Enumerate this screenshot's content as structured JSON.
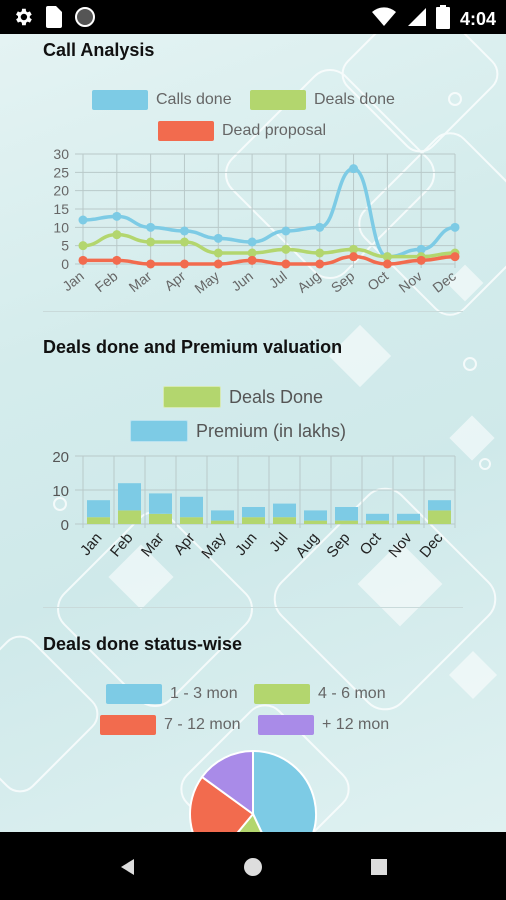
{
  "status_bar": {
    "time": "4:04",
    "left_icons": [
      "gear-icon",
      "sim-card-icon",
      "circle-icon"
    ],
    "right_icons": [
      "wifi-icon",
      "signal-icon",
      "battery-icon"
    ]
  },
  "sections": {
    "call_analysis": {
      "title": "Call Analysis"
    },
    "deals_premium": {
      "title": "Deals done and Premium valuation"
    },
    "status_wise": {
      "title": "Deals done status-wise"
    }
  },
  "colors": {
    "blue": "#7dcbe5",
    "green": "#b3d66e",
    "red": "#f26b4e",
    "purple": "#a98be8"
  },
  "chart_data": [
    {
      "type": "line",
      "title": "Call Analysis",
      "categories": [
        "Jan",
        "Feb",
        "Mar",
        "Apr",
        "May",
        "Jun",
        "Jul",
        "Aug",
        "Sep",
        "Oct",
        "Nov",
        "Dec"
      ],
      "ylim": [
        0,
        30
      ],
      "yticks": [
        0,
        5,
        10,
        15,
        20,
        25,
        30
      ],
      "series": [
        {
          "name": "Calls done",
          "color": "#7dcbe5",
          "values": [
            12,
            13,
            10,
            9,
            7,
            6,
            9,
            10,
            26,
            2,
            4,
            10
          ]
        },
        {
          "name": "Deals done",
          "color": "#b3d66e",
          "values": [
            5,
            8,
            6,
            6,
            3,
            3,
            4,
            3,
            4,
            2,
            2,
            3
          ]
        },
        {
          "name": "Dead proposal",
          "color": "#f26b4e",
          "values": [
            1,
            1,
            0,
            0,
            0,
            1,
            0,
            0,
            2,
            0,
            1,
            2
          ]
        }
      ],
      "legend_position": "top"
    },
    {
      "type": "bar",
      "title": "Deals done and Premium valuation",
      "categories": [
        "Jan",
        "Feb",
        "Mar",
        "Apr",
        "May",
        "Jun",
        "Jul",
        "Aug",
        "Sep",
        "Oct",
        "Nov",
        "Dec"
      ],
      "ylim": [
        0,
        20
      ],
      "yticks": [
        0,
        10,
        20
      ],
      "stacked": true,
      "series": [
        {
          "name": "Deals Done",
          "color": "#b3d66e",
          "values": [
            2,
            4,
            3,
            2,
            1,
            2,
            2,
            1,
            1,
            1,
            1,
            4
          ]
        },
        {
          "name": "Premium (in lakhs)",
          "color": "#7dcbe5",
          "values": [
            5,
            8,
            6,
            6,
            3,
            3,
            4,
            3,
            4,
            2,
            2,
            3
          ]
        }
      ],
      "legend_position": "top"
    },
    {
      "type": "pie",
      "title": "Deals done status-wise",
      "slices": [
        {
          "label": "1 - 3 mon",
          "color": "#7dcbe5",
          "value": 43
        },
        {
          "label": "4 - 6 mon",
          "color": "#b3d66e",
          "value": 18
        },
        {
          "label": "7 - 12 mon",
          "color": "#f26b4e",
          "value": 24
        },
        {
          "label": "+ 12 mon",
          "color": "#a98be8",
          "value": 15
        }
      ],
      "legend_position": "top"
    }
  ],
  "nav": {
    "icons": [
      "back-icon",
      "home-icon",
      "recents-icon"
    ]
  }
}
